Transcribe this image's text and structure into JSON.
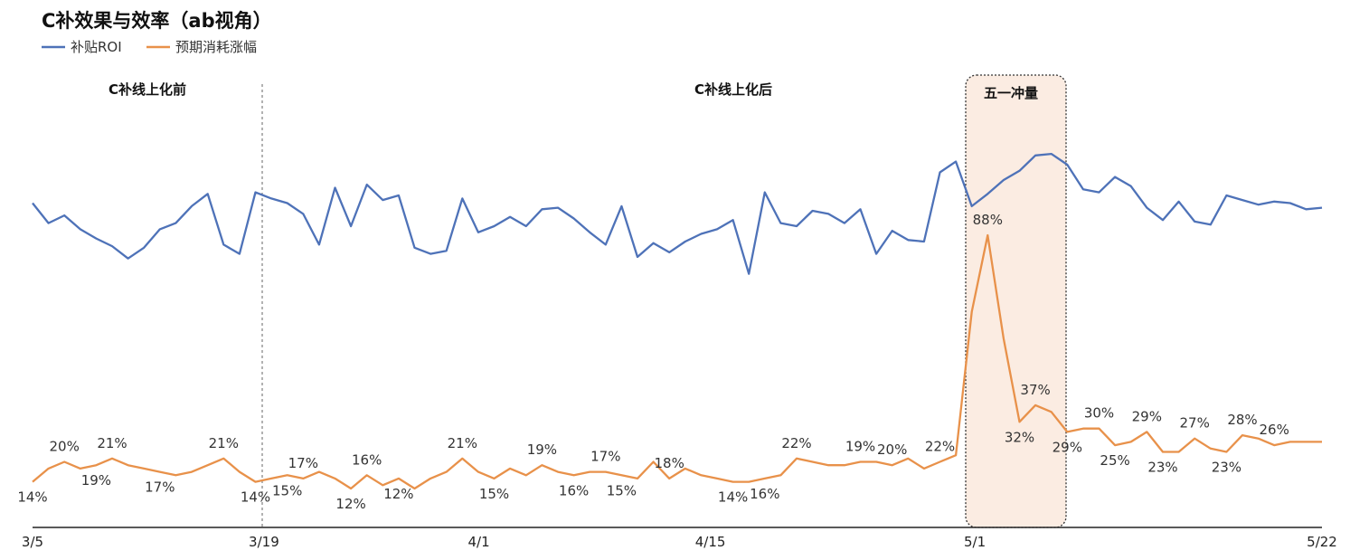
{
  "chart_data": {
    "type": "line",
    "title": "C补效果与效率（ab视角）",
    "legend": [
      "补贴ROI",
      "预期消耗涨幅"
    ],
    "x_ticks": [
      "3/5",
      "3/19",
      "4/1",
      "4/15",
      "5/1",
      "5/22"
    ],
    "phases": {
      "before": "C补线上化前",
      "after": "C补线上化后",
      "holiday": "五一冲量"
    },
    "colors": {
      "roi": "#4e72b8",
      "growth": "#e8914a",
      "holiday_fill": "#fbece2"
    },
    "series": [
      {
        "name": "补贴ROI",
        "values_note": "values obscured in source; relative shape only",
        "values": [
          65,
          52,
          57,
          48,
          42,
          37,
          29,
          36,
          48,
          52,
          63,
          71,
          38,
          32,
          72,
          68,
          65,
          58,
          38,
          75,
          50,
          77,
          67,
          70,
          36,
          32,
          34,
          68,
          46,
          50,
          56,
          50,
          61,
          62,
          55,
          46,
          38,
          63,
          30,
          39,
          33,
          40,
          45,
          48,
          54,
          19,
          72,
          52,
          50,
          60,
          58,
          52,
          61,
          32,
          47,
          41,
          40,
          85,
          92,
          63,
          71,
          80,
          86,
          96,
          97,
          90,
          74,
          72,
          82,
          76,
          62,
          54,
          66,
          53,
          51,
          70,
          67,
          64,
          66,
          65,
          61,
          62
        ]
      },
      {
        "name": "预期消耗涨幅",
        "values": [
          14,
          18,
          20,
          18,
          19,
          21,
          19,
          18,
          17,
          16,
          17,
          19,
          21,
          17,
          14,
          15,
          16,
          15,
          17,
          15,
          12,
          16,
          13,
          15,
          12,
          15,
          17,
          21,
          17,
          15,
          18,
          16,
          19,
          17,
          16,
          17,
          17,
          16,
          15,
          20,
          15,
          18,
          16,
          15,
          14,
          14,
          15,
          16,
          21,
          20,
          19,
          19,
          20,
          20,
          19,
          21,
          18,
          20,
          22,
          65,
          88,
          57,
          32,
          37,
          35,
          29,
          30,
          30,
          25,
          26,
          29,
          23,
          23,
          27,
          24,
          23,
          28,
          27,
          25,
          26,
          26,
          26
        ]
      }
    ],
    "data_labels": [
      "14%",
      "20%",
      "19%",
      "21%",
      "17%",
      "21%",
      "14%",
      "15%",
      "17%",
      "12%",
      "16%",
      "12%",
      "21%",
      "15%",
      "19%",
      "16%",
      "17%",
      "15%",
      "18%",
      "14%",
      "16%",
      "22%",
      "19%",
      "20%",
      "22%",
      "88%",
      "32%",
      "37%",
      "29%",
      "30%",
      "25%",
      "29%",
      "23%",
      "27%",
      "23%",
      "28%",
      "26%"
    ]
  }
}
